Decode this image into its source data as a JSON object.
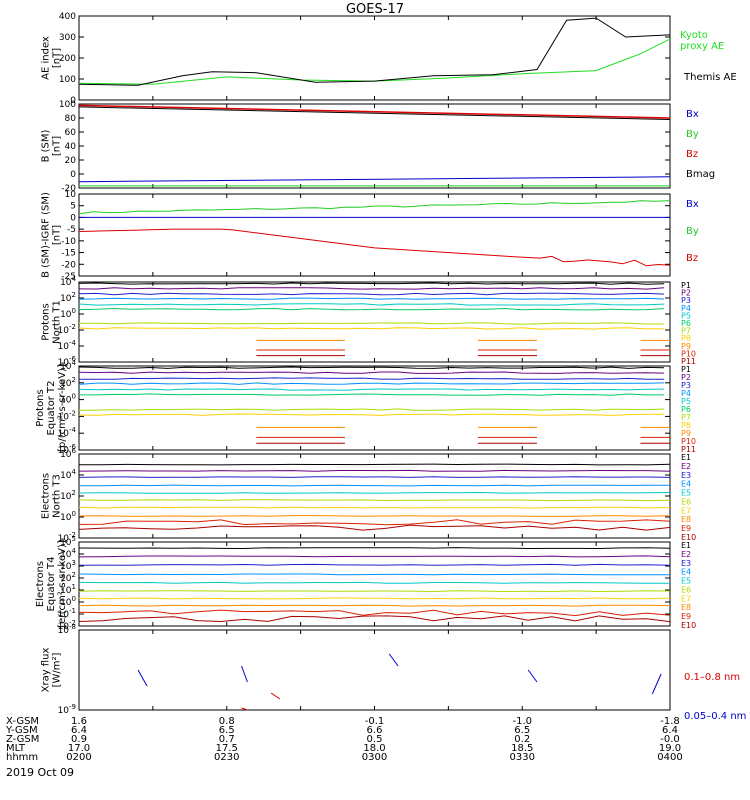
{
  "title": "GOES-17",
  "date": "2019 Oct 09",
  "panels": [
    {
      "id": "ae",
      "ylabel": [
        "AE index",
        "[nT]"
      ],
      "ymin": 0,
      "ymax": 400,
      "scale": "linear",
      "ticks": [
        "0",
        "100",
        "200",
        "300",
        "400"
      ],
      "tickvals": [
        0,
        100,
        200,
        300,
        400
      ],
      "legend": [
        {
          "text": "Kyoto",
          "color": "#22dd22"
        },
        {
          "text": "proxy AE",
          "color": "#22dd22"
        },
        {
          "text": "Themis AE",
          "color": "#000000"
        }
      ]
    },
    {
      "id": "bsm",
      "ylabel": [
        "B (SM)",
        "[nT]"
      ],
      "ymin": -20,
      "ymax": 100,
      "scale": "linear",
      "ticks": [
        "-20",
        "0",
        "20",
        "40",
        "60",
        "80",
        "100"
      ],
      "tickvals": [
        -20,
        0,
        20,
        40,
        60,
        80,
        100
      ],
      "legend": [
        {
          "text": "Bx",
          "color": "#0000cc"
        },
        {
          "text": "By",
          "color": "#22cc22"
        },
        {
          "text": "Bz",
          "color": "#dd0000"
        },
        {
          "text": "Bmag",
          "color": "#000000"
        }
      ]
    },
    {
      "id": "bigrf",
      "ylabel": [
        "B (SM)-IGRF (SM)",
        "[nT]"
      ],
      "ymin": -25,
      "ymax": 10,
      "scale": "linear",
      "ticks": [
        "10",
        "5",
        "0",
        "-5",
        "-10",
        "-15",
        "-20",
        "-25"
      ],
      "tickvals": [
        10,
        5,
        0,
        -5,
        -10,
        -15,
        -20,
        -25
      ],
      "legend": [
        {
          "text": "Bx",
          "color": "#0000cc"
        },
        {
          "text": "By",
          "color": "#22cc22"
        },
        {
          "text": "Bz",
          "color": "#dd0000"
        }
      ]
    },
    {
      "id": "pt1",
      "ylabel": [
        "Protons",
        "North T1"
      ],
      "ymin": -6,
      "ymax": 4,
      "scale": "log",
      "ticks": [
        "10^4",
        "10^2",
        "10^0",
        "10^-2",
        "10^-4",
        "10^-6"
      ],
      "tickvals": [
        4,
        2,
        0,
        -2,
        -4,
        -6
      ],
      "legend": [
        {
          "text": "P1"
        },
        {
          "text": "P2"
        },
        {
          "text": "P3"
        },
        {
          "text": "P4"
        },
        {
          "text": "P5"
        },
        {
          "text": "P6"
        },
        {
          "text": "P7"
        },
        {
          "text": "P8"
        },
        {
          "text": "P9"
        },
        {
          "text": "P10"
        },
        {
          "text": "P11"
        }
      ]
    },
    {
      "id": "pt2",
      "ylabel": [
        "Protons",
        "Equator T2",
        "[p/(cm²-s-sr-keV)]"
      ],
      "ymin": -6,
      "ymax": 4,
      "scale": "log",
      "ticks": [
        "10^4",
        "10^2",
        "10^0",
        "10^-2",
        "10^-4",
        "10^-6"
      ],
      "tickvals": [
        4,
        2,
        0,
        -2,
        -4,
        -6
      ],
      "legend": [
        {
          "text": "P1"
        },
        {
          "text": "P2"
        },
        {
          "text": "P3"
        },
        {
          "text": "P4"
        },
        {
          "text": "P5"
        },
        {
          "text": "P6"
        },
        {
          "text": "P7"
        },
        {
          "text": "P8"
        },
        {
          "text": "P9"
        },
        {
          "text": "P10"
        },
        {
          "text": "P11"
        }
      ]
    },
    {
      "id": "et3",
      "ylabel": [
        "Electrons",
        "North T3"
      ],
      "ymin": -2,
      "ymax": 6,
      "scale": "log",
      "ticks": [
        "10^6",
        "10^4",
        "10^2",
        "10^0",
        "10^-2"
      ],
      "tickvals": [
        6,
        4,
        2,
        0,
        -2
      ],
      "legend": [
        {
          "text": "E1"
        },
        {
          "text": "E2"
        },
        {
          "text": "E3"
        },
        {
          "text": "E4"
        },
        {
          "text": "E5"
        },
        {
          "text": "E6"
        },
        {
          "text": "E7"
        },
        {
          "text": "E8"
        },
        {
          "text": "E9"
        },
        {
          "text": "E10"
        }
      ]
    },
    {
      "id": "et4",
      "ylabel": [
        "Electrons",
        "Equator T4",
        "[e/(cm²-s-sr-keV)]"
      ],
      "ymin": -2,
      "ymax": 5,
      "scale": "log",
      "ticks": [
        "10^5",
        "10^4",
        "10^3",
        "10^2",
        "10^1",
        "10^0",
        "10^-1",
        "10^-2"
      ],
      "tickvals": [
        5,
        4,
        3,
        2,
        1,
        0,
        -1,
        -2
      ],
      "legend": [
        {
          "text": "E1"
        },
        {
          "text": "E2"
        },
        {
          "text": "E3"
        },
        {
          "text": "E4"
        },
        {
          "text": "E5"
        },
        {
          "text": "E6"
        },
        {
          "text": "E7"
        },
        {
          "text": "E8"
        },
        {
          "text": "E9"
        },
        {
          "text": "E10"
        }
      ]
    },
    {
      "id": "xray",
      "ylabel": [
        "Xray flux",
        "[W/m²]"
      ],
      "ymin": -9,
      "ymax": -8,
      "scale": "log",
      "ticks": [
        "10^-8",
        "10^-9"
      ],
      "tickvals": [
        -8,
        -9
      ],
      "legend": [
        {
          "text": "0.1–0.8 nm",
          "color": "#dd0000"
        },
        {
          "text": "0.05–0.4 nm",
          "color": "#0000cc"
        }
      ]
    }
  ],
  "channel_colors": [
    "#000000",
    "#6a0080",
    "#2020cc",
    "#0090ff",
    "#00c8c8",
    "#00cc66",
    "#aadd00",
    "#ffd000",
    "#ff8800",
    "#dd2000",
    "#aa0000"
  ],
  "bottom_axis": {
    "labels": [
      "X-GSM",
      "Y-GSM",
      "Z-GSM",
      "MLT",
      "hhmm"
    ],
    "columns": [
      {
        "values": [
          "1.6",
          "6.4",
          "0.9",
          "17.0",
          "0200"
        ]
      },
      {
        "values": [
          "0.8",
          "6.5",
          "0.7",
          "17.5",
          "0230"
        ]
      },
      {
        "values": [
          "-0.1",
          "6.6",
          "0.5",
          "18.0",
          "0300"
        ]
      },
      {
        "values": [
          "-1.0",
          "6.5",
          "0.2",
          "18.5",
          "0330"
        ]
      },
      {
        "values": [
          "-1.8",
          "6.4",
          "-0.0",
          "19.0",
          "0400"
        ]
      }
    ]
  },
  "chart_data": {
    "type": "line",
    "title": "GOES-17",
    "x_time_hhmm": [
      "0200",
      "0230",
      "0300",
      "0330",
      "0400"
    ],
    "ae_kyoto_proxy": {
      "name": "Kyoto proxy AE",
      "x_hours": [
        2.0,
        2.25,
        2.5,
        2.75,
        3.0,
        3.25,
        3.5,
        3.75,
        3.9,
        4.0
      ],
      "y": [
        80,
        75,
        110,
        95,
        90,
        105,
        125,
        140,
        220,
        290
      ]
    },
    "ae_themis": {
      "name": "Themis AE",
      "x_hours": [
        2.0,
        2.2,
        2.35,
        2.45,
        2.6,
        2.8,
        3.0,
        3.2,
        3.4,
        3.55,
        3.65,
        3.75,
        3.85,
        4.0
      ],
      "y": [
        75,
        70,
        115,
        135,
        130,
        85,
        90,
        115,
        120,
        145,
        380,
        390,
        300,
        310
      ]
    },
    "b_sm": {
      "bz_x": [
        2.0,
        4.0
      ],
      "bz_y": [
        98,
        80
      ],
      "bx_x": [
        2.0,
        4.0
      ],
      "bx_y": [
        -11,
        -4
      ],
      "by_x": [
        2.0,
        4.0
      ],
      "by_y": [
        -17,
        -17
      ]
    },
    "b_minus_igrf": {
      "by_x": [
        2.0,
        4.0
      ],
      "by_y": [
        2,
        7
      ],
      "bx_x": [
        2.0,
        4.0
      ],
      "bx_y": [
        0,
        0
      ],
      "bz_x": [
        2.0,
        2.3,
        2.5,
        3.0,
        3.5,
        4.0
      ],
      "bz_y": [
        -6,
        -5,
        -5,
        -13,
        -17,
        -20
      ]
    }
  }
}
